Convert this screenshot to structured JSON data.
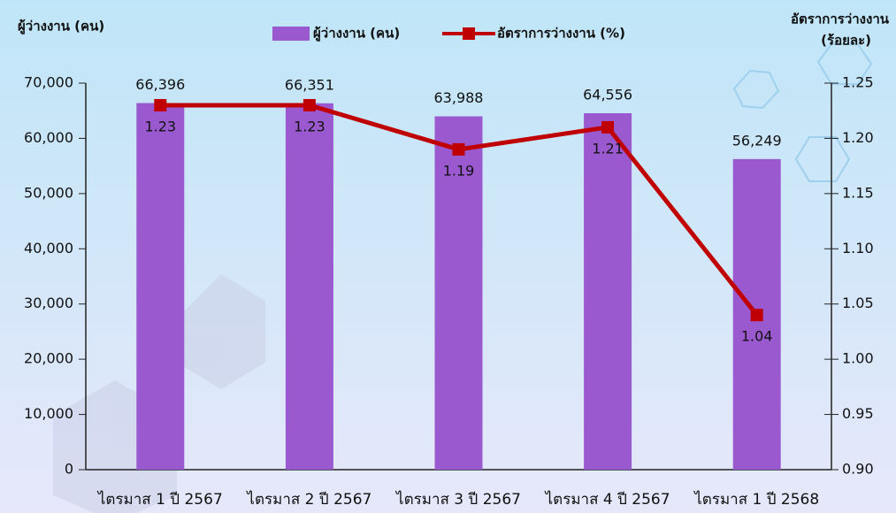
{
  "chart_data": {
    "type": "bar",
    "title_left": "ผู้ว่างงาน (คน)",
    "title_right": [
      "อัตราการว่างงาน",
      "(ร้อยละ)"
    ],
    "categories": [
      "ไตรมาส 1 ปี 2567",
      "ไตรมาส 2 ปี 2567",
      "ไตรมาส 3 ปี 2567",
      "ไตรมาส 4 ปี 2567",
      "ไตรมาส 1 ปี 2568"
    ],
    "series": [
      {
        "name": "ผู้ว่างงาน (คน)",
        "type": "bar",
        "color": "#9b59d0",
        "values": [
          66396,
          66351,
          63988,
          64556,
          56249
        ],
        "value_labels": [
          "66,396",
          "66,351",
          "63,988",
          "64,556",
          "56,249"
        ]
      },
      {
        "name": "อัตราการว่างงาน (%)",
        "type": "line",
        "axis": "y2",
        "color": "#c00000",
        "values": [
          1.23,
          1.23,
          1.19,
          1.21,
          1.04
        ]
      }
    ],
    "ylim": [
      0,
      70000
    ],
    "yticks": [
      0,
      {
        "value": 10000,
        "label": "10,000"
      },
      {
        "value": 20000,
        "label": "20,000"
      },
      {
        "value": 30000,
        "label": "30,000"
      },
      {
        "value": 40000,
        "label": "40,000"
      },
      {
        "value": 50000,
        "label": "50,000"
      },
      {
        "value": 60000,
        "label": "60,000"
      },
      {
        "value": 70000,
        "label": "70,000"
      }
    ],
    "y2lim": [
      0.9,
      1.25
    ],
    "y2ticks": [
      {
        "value": 0.9,
        "label": "0.90"
      },
      0.95,
      {
        "value": 1.0,
        "label": "1.00"
      },
      1.05,
      {
        "value": 1.1,
        "label": "1.10"
      },
      1.15,
      {
        "value": 1.2,
        "label": "1.20"
      },
      1.25
    ]
  }
}
